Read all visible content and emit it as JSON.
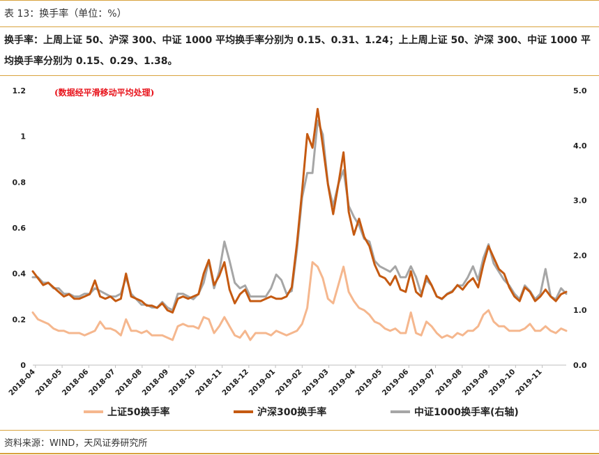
{
  "header": {
    "caption": "表 13：换手率（单位：%）",
    "summary": "换手率：上周上证 50、沪深 300、中证 1000 平均换手率分别为 0.15、0.31、1.24；上上周上证 50、沪深 300、中证 1000 平均换手率分别为 0.15、0.29、1.38。"
  },
  "footer": {
    "source": "资料来源：WIND，天风证券研究所"
  },
  "chart_data": {
    "type": "line",
    "annotation": "(数据经平滑移动平均处理)",
    "x_labels": [
      "2018-04",
      "2018-05",
      "2018-06",
      "2018-07",
      "2018-08",
      "2018-09",
      "2018-10",
      "2018-11",
      "2018-12",
      "2019-01",
      "2019-02",
      "2019-03",
      "2019-04",
      "2019-05",
      "2019-06",
      "2019-07",
      "2019-08",
      "2019-09",
      "2019-10",
      "2019-11"
    ],
    "y_left": {
      "ticks": [
        0,
        0.2,
        0.4,
        0.6,
        0.8,
        1,
        1.2
      ],
      "tick_labels": [
        "0",
        "0.2",
        "0.4",
        "0.6",
        "0.8",
        "1",
        "1.2"
      ],
      "range": [
        0,
        1.2
      ]
    },
    "y_right": {
      "ticks": [
        0,
        1,
        2,
        3,
        4,
        5
      ],
      "tick_labels": [
        "0.0",
        "1.0",
        "2.0",
        "3.0",
        "4.0",
        "5.0"
      ],
      "range": [
        0,
        5
      ]
    },
    "grid": false,
    "legend_position": "bottom",
    "series": [
      {
        "name": "上证50换手率",
        "axis": "left",
        "color": "#f5b78e",
        "values": [
          0.23,
          0.2,
          0.19,
          0.18,
          0.16,
          0.15,
          0.15,
          0.14,
          0.14,
          0.14,
          0.13,
          0.14,
          0.15,
          0.19,
          0.16,
          0.16,
          0.15,
          0.13,
          0.2,
          0.15,
          0.15,
          0.14,
          0.15,
          0.13,
          0.13,
          0.13,
          0.12,
          0.11,
          0.17,
          0.18,
          0.17,
          0.17,
          0.16,
          0.21,
          0.2,
          0.14,
          0.17,
          0.21,
          0.17,
          0.13,
          0.12,
          0.15,
          0.11,
          0.14,
          0.14,
          0.14,
          0.13,
          0.15,
          0.14,
          0.13,
          0.14,
          0.15,
          0.18,
          0.25,
          0.45,
          0.43,
          0.38,
          0.29,
          0.27,
          0.35,
          0.43,
          0.32,
          0.28,
          0.25,
          0.24,
          0.22,
          0.19,
          0.18,
          0.16,
          0.15,
          0.16,
          0.14,
          0.14,
          0.23,
          0.14,
          0.13,
          0.19,
          0.17,
          0.14,
          0.12,
          0.13,
          0.12,
          0.14,
          0.13,
          0.15,
          0.15,
          0.17,
          0.22,
          0.24,
          0.19,
          0.17,
          0.17,
          0.15,
          0.15,
          0.15,
          0.16,
          0.18,
          0.15,
          0.15,
          0.17,
          0.15,
          0.14,
          0.16,
          0.15
        ]
      },
      {
        "name": "沪深300换手率",
        "axis": "left",
        "color": "#c55a11",
        "values": [
          0.41,
          0.38,
          0.35,
          0.36,
          0.34,
          0.32,
          0.3,
          0.31,
          0.29,
          0.29,
          0.3,
          0.31,
          0.37,
          0.3,
          0.29,
          0.3,
          0.28,
          0.29,
          0.4,
          0.3,
          0.29,
          0.28,
          0.26,
          0.26,
          0.25,
          0.27,
          0.24,
          0.23,
          0.29,
          0.3,
          0.29,
          0.3,
          0.31,
          0.4,
          0.46,
          0.35,
          0.39,
          0.45,
          0.33,
          0.27,
          0.31,
          0.33,
          0.28,
          0.28,
          0.28,
          0.29,
          0.3,
          0.29,
          0.29,
          0.3,
          0.34,
          0.53,
          0.76,
          1.01,
          0.95,
          1.12,
          0.96,
          0.79,
          0.66,
          0.79,
          0.93,
          0.67,
          0.57,
          0.64,
          0.56,
          0.52,
          0.44,
          0.39,
          0.38,
          0.35,
          0.39,
          0.33,
          0.32,
          0.41,
          0.32,
          0.3,
          0.39,
          0.35,
          0.3,
          0.29,
          0.31,
          0.32,
          0.35,
          0.33,
          0.36,
          0.38,
          0.34,
          0.44,
          0.52,
          0.47,
          0.42,
          0.4,
          0.34,
          0.3,
          0.28,
          0.34,
          0.32,
          0.28,
          0.3,
          0.33,
          0.3,
          0.28,
          0.31,
          0.32
        ]
      },
      {
        "name": "中证1000换手率(右轴)",
        "axis": "right",
        "color": "#a6a6a6",
        "values": [
          1.6,
          1.6,
          1.5,
          1.5,
          1.4,
          1.4,
          1.3,
          1.3,
          1.25,
          1.25,
          1.3,
          1.3,
          1.4,
          1.35,
          1.3,
          1.25,
          1.25,
          1.3,
          1.6,
          1.3,
          1.2,
          1.1,
          1.1,
          1.05,
          1.05,
          1.15,
          1.05,
          1.0,
          1.3,
          1.3,
          1.25,
          1.2,
          1.3,
          1.5,
          1.9,
          1.4,
          1.7,
          2.25,
          1.9,
          1.5,
          1.4,
          1.45,
          1.25,
          1.25,
          1.25,
          1.25,
          1.4,
          1.65,
          1.55,
          1.3,
          1.35,
          2.1,
          3.05,
          3.5,
          3.5,
          4.45,
          4.2,
          3.3,
          2.9,
          3.3,
          3.55,
          2.9,
          2.7,
          2.55,
          2.3,
          2.25,
          1.9,
          1.8,
          1.75,
          1.7,
          1.8,
          1.6,
          1.6,
          1.8,
          1.6,
          1.3,
          1.55,
          1.45,
          1.25,
          1.2,
          1.3,
          1.35,
          1.45,
          1.45,
          1.6,
          1.8,
          1.55,
          1.95,
          2.2,
          1.85,
          1.7,
          1.55,
          1.45,
          1.3,
          1.2,
          1.45,
          1.35,
          1.2,
          1.3,
          1.75,
          1.25,
          1.2,
          1.4,
          1.3
        ]
      }
    ]
  }
}
